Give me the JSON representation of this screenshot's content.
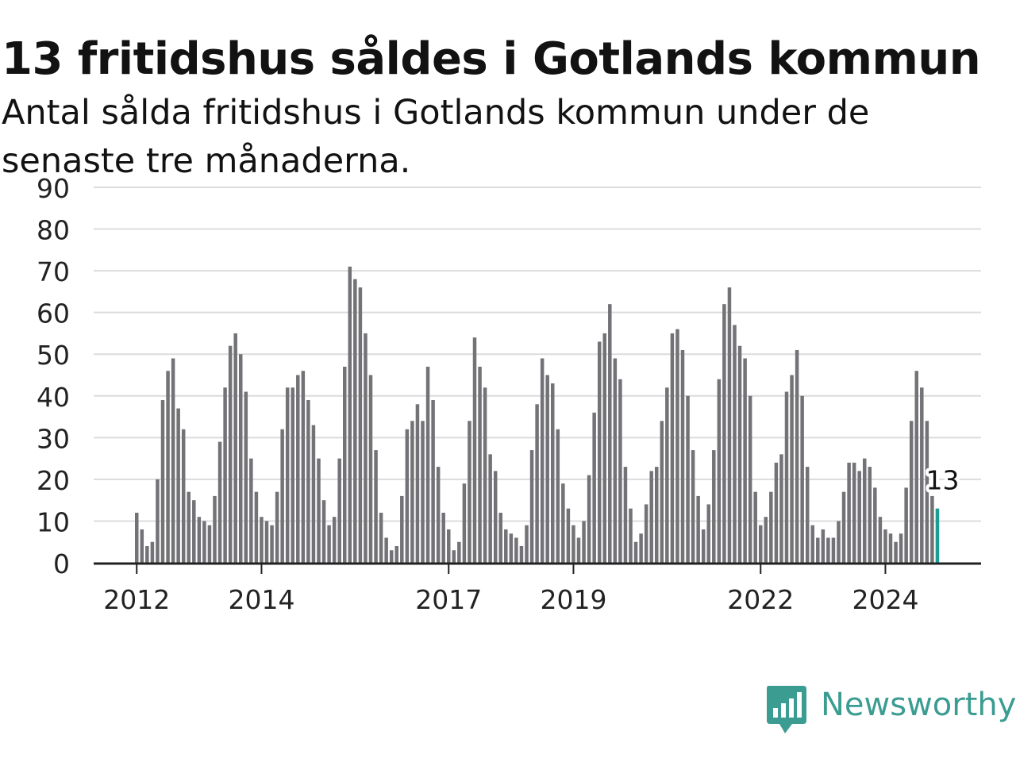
{
  "chart_data": {
    "type": "bar",
    "title": "13 fritidshus såldes i Gotlands kommun",
    "subtitle": "Antal sålda fritidshus i Gotlands kommun under de senaste tre månaderna.",
    "xlabel": "",
    "ylabel": "",
    "ylim": [
      0,
      90
    ],
    "yticks": [
      "0",
      "10",
      "20",
      "30",
      "40",
      "50",
      "60",
      "70",
      "80",
      "90"
    ],
    "xtick_labels": [
      {
        "label": "2012",
        "x": "2012-01"
      },
      {
        "label": "2014",
        "x": "2014-01"
      },
      {
        "label": "2017",
        "x": "2017-01"
      },
      {
        "label": "2019",
        "x": "2019-01"
      },
      {
        "label": "2022",
        "x": "2022-01"
      },
      {
        "label": "2024",
        "x": "2024-01"
      }
    ],
    "x_start": "2012-01",
    "x_end": "2024-12",
    "grid": true,
    "legend": "none",
    "colors": {
      "bar": "#737276",
      "highlight": "#1a9e94",
      "grid": "#dcdcdc",
      "axis": "#222222"
    },
    "series": [
      {
        "values": [
          12,
          8,
          4,
          5,
          20,
          39,
          46,
          49,
          37,
          32,
          17,
          15,
          11,
          10,
          9,
          16,
          29,
          42,
          52,
          55,
          50,
          41,
          25,
          17,
          11,
          10,
          9,
          17,
          32,
          42,
          42,
          45,
          46,
          39,
          33,
          25,
          15,
          9,
          11,
          25,
          47,
          71,
          68,
          66,
          55,
          45,
          27,
          12,
          6,
          3,
          4,
          16,
          32,
          34,
          38,
          34,
          47,
          39,
          23,
          12,
          8,
          3,
          5,
          19,
          34,
          54,
          47,
          42,
          26,
          22,
          12,
          8,
          7,
          6,
          4,
          9,
          27,
          38,
          49,
          45,
          43,
          32,
          19,
          13,
          9,
          6,
          10,
          21,
          36,
          53,
          55,
          62,
          49,
          44,
          23,
          13,
          5,
          7,
          14,
          22,
          23,
          34,
          42,
          55,
          56,
          51,
          40,
          27,
          16,
          8,
          14,
          27,
          44,
          62,
          66,
          57,
          52,
          49,
          40,
          17,
          9,
          11,
          17,
          24,
          26,
          41,
          45,
          51,
          40,
          23,
          9,
          6,
          8,
          6,
          6,
          10,
          17,
          24,
          24,
          22,
          25,
          23,
          18,
          11,
          8,
          7,
          5,
          7,
          18,
          34,
          46,
          42,
          34,
          16,
          13
        ]
      }
    ],
    "annotation": {
      "text": "13",
      "x": "2024-12",
      "value": 13
    }
  },
  "brand": {
    "name": "Newsworthy"
  }
}
